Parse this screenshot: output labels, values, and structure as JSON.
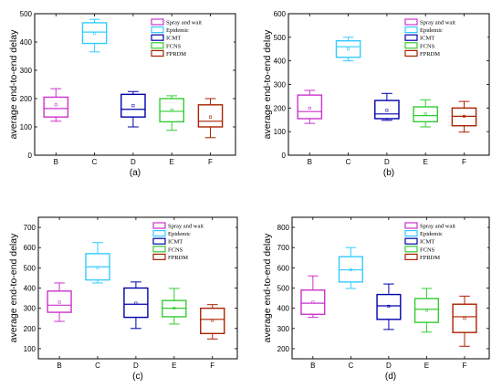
{
  "chart_data": [
    {
      "type": "box",
      "panel_label": "(a)",
      "ylabel": "average end-to-end delay",
      "ylim": [
        0,
        500
      ],
      "yticks": [
        0,
        100,
        200,
        300,
        400,
        500
      ],
      "categories": [
        "B",
        "C",
        "D",
        "E",
        "F"
      ],
      "legend": [
        "Spray and wait",
        "Epidemic",
        "ICMT",
        "FCNS",
        "FPRDM"
      ],
      "legend_placement": "top-right",
      "colors": [
        "#cc33cc",
        "#33ccff",
        "#0000aa",
        "#33cc33",
        "#aa2200"
      ],
      "boxes": [
        {
          "q1": 135,
          "median": 165,
          "q3": 205,
          "whisker_low": 120,
          "whisker_high": 235,
          "mean": 178
        },
        {
          "q1": 395,
          "median": 435,
          "q3": 468,
          "whisker_low": 365,
          "whisker_high": 480,
          "mean": 430
        },
        {
          "q1": 135,
          "median": 162,
          "q3": 215,
          "whisker_low": 100,
          "whisker_high": 225,
          "mean": 175
        },
        {
          "q1": 118,
          "median": 155,
          "q3": 200,
          "whisker_low": 88,
          "whisker_high": 210,
          "mean": 160
        },
        {
          "q1": 100,
          "median": 120,
          "q3": 178,
          "whisker_low": 62,
          "whisker_high": 200,
          "mean": 135
        }
      ]
    },
    {
      "type": "box",
      "panel_label": "(b)",
      "ylabel": "average end-to-end delay",
      "ylim": [
        0,
        600
      ],
      "yticks": [
        0,
        100,
        200,
        300,
        400,
        500,
        600
      ],
      "categories": [
        "B",
        "C",
        "D",
        "E",
        "F"
      ],
      "legend": [
        "Spray and wait",
        "Epidemic",
        "ICMT",
        "FCNS",
        "FPRDM"
      ],
      "legend_placement": "top-right",
      "colors": [
        "#cc33cc",
        "#33ccff",
        "#0000aa",
        "#33cc33",
        "#aa2200"
      ],
      "boxes": [
        {
          "q1": 155,
          "median": 185,
          "q3": 255,
          "whisker_low": 135,
          "whisker_high": 275,
          "mean": 200
        },
        {
          "q1": 415,
          "median": 460,
          "q3": 485,
          "whisker_low": 400,
          "whisker_high": 500,
          "mean": 450
        },
        {
          "q1": 155,
          "median": 175,
          "q3": 232,
          "whisker_low": 148,
          "whisker_high": 262,
          "mean": 190
        },
        {
          "q1": 142,
          "median": 168,
          "q3": 205,
          "whisker_low": 120,
          "whisker_high": 235,
          "mean": 175
        },
        {
          "q1": 125,
          "median": 165,
          "q3": 200,
          "whisker_low": 98,
          "whisker_high": 228,
          "mean": 165
        }
      ]
    },
    {
      "type": "box",
      "panel_label": "(c)",
      "ylabel": "average end-to-end delay",
      "ylim": [
        50,
        750
      ],
      "yticks": [
        100,
        200,
        300,
        400,
        500,
        600,
        700
      ],
      "categories": [
        "B",
        "C",
        "D",
        "E",
        "F"
      ],
      "legend": [
        "Spray and wait",
        "Epidemic",
        "ICMT",
        "FCNS",
        "FPRDM"
      ],
      "legend_placement": "top-right",
      "colors": [
        "#cc33cc",
        "#33ccff",
        "#0000aa",
        "#33cc33",
        "#aa2200"
      ],
      "boxes": [
        {
          "q1": 280,
          "median": 315,
          "q3": 385,
          "whisker_low": 235,
          "whisker_high": 425,
          "mean": 330
        },
        {
          "q1": 440,
          "median": 505,
          "q3": 570,
          "whisker_low": 425,
          "whisker_high": 625,
          "mean": 500
        },
        {
          "q1": 255,
          "median": 320,
          "q3": 400,
          "whisker_low": 200,
          "whisker_high": 430,
          "mean": 325
        },
        {
          "q1": 258,
          "median": 300,
          "q3": 338,
          "whisker_low": 222,
          "whisker_high": 398,
          "mean": 300
        },
        {
          "q1": 175,
          "median": 245,
          "q3": 300,
          "whisker_low": 148,
          "whisker_high": 318,
          "mean": 240
        }
      ]
    },
    {
      "type": "box",
      "panel_label": "(d)",
      "ylabel": "average end-to-end delay",
      "ylim": [
        150,
        850
      ],
      "yticks": [
        200,
        300,
        400,
        500,
        600,
        700,
        800
      ],
      "categories": [
        "B",
        "C",
        "D",
        "E",
        "F"
      ],
      "legend": [
        "Spray and wait",
        "Epidemic",
        "ICMT",
        "FCNS",
        "FPRDM"
      ],
      "legend_placement": "top-right",
      "colors": [
        "#cc33cc",
        "#33ccff",
        "#0000aa",
        "#33cc33",
        "#aa2200"
      ],
      "boxes": [
        {
          "q1": 370,
          "median": 425,
          "q3": 490,
          "whisker_low": 355,
          "whisker_high": 560,
          "mean": 430
        },
        {
          "q1": 530,
          "median": 590,
          "q3": 655,
          "whisker_low": 498,
          "whisker_high": 700,
          "mean": 590
        },
        {
          "q1": 345,
          "median": 412,
          "q3": 468,
          "whisker_low": 295,
          "whisker_high": 520,
          "mean": 410
        },
        {
          "q1": 330,
          "median": 395,
          "q3": 448,
          "whisker_low": 282,
          "whisker_high": 498,
          "mean": 390
        },
        {
          "q1": 280,
          "median": 358,
          "q3": 420,
          "whisker_low": 212,
          "whisker_high": 460,
          "mean": 350
        }
      ]
    }
  ]
}
